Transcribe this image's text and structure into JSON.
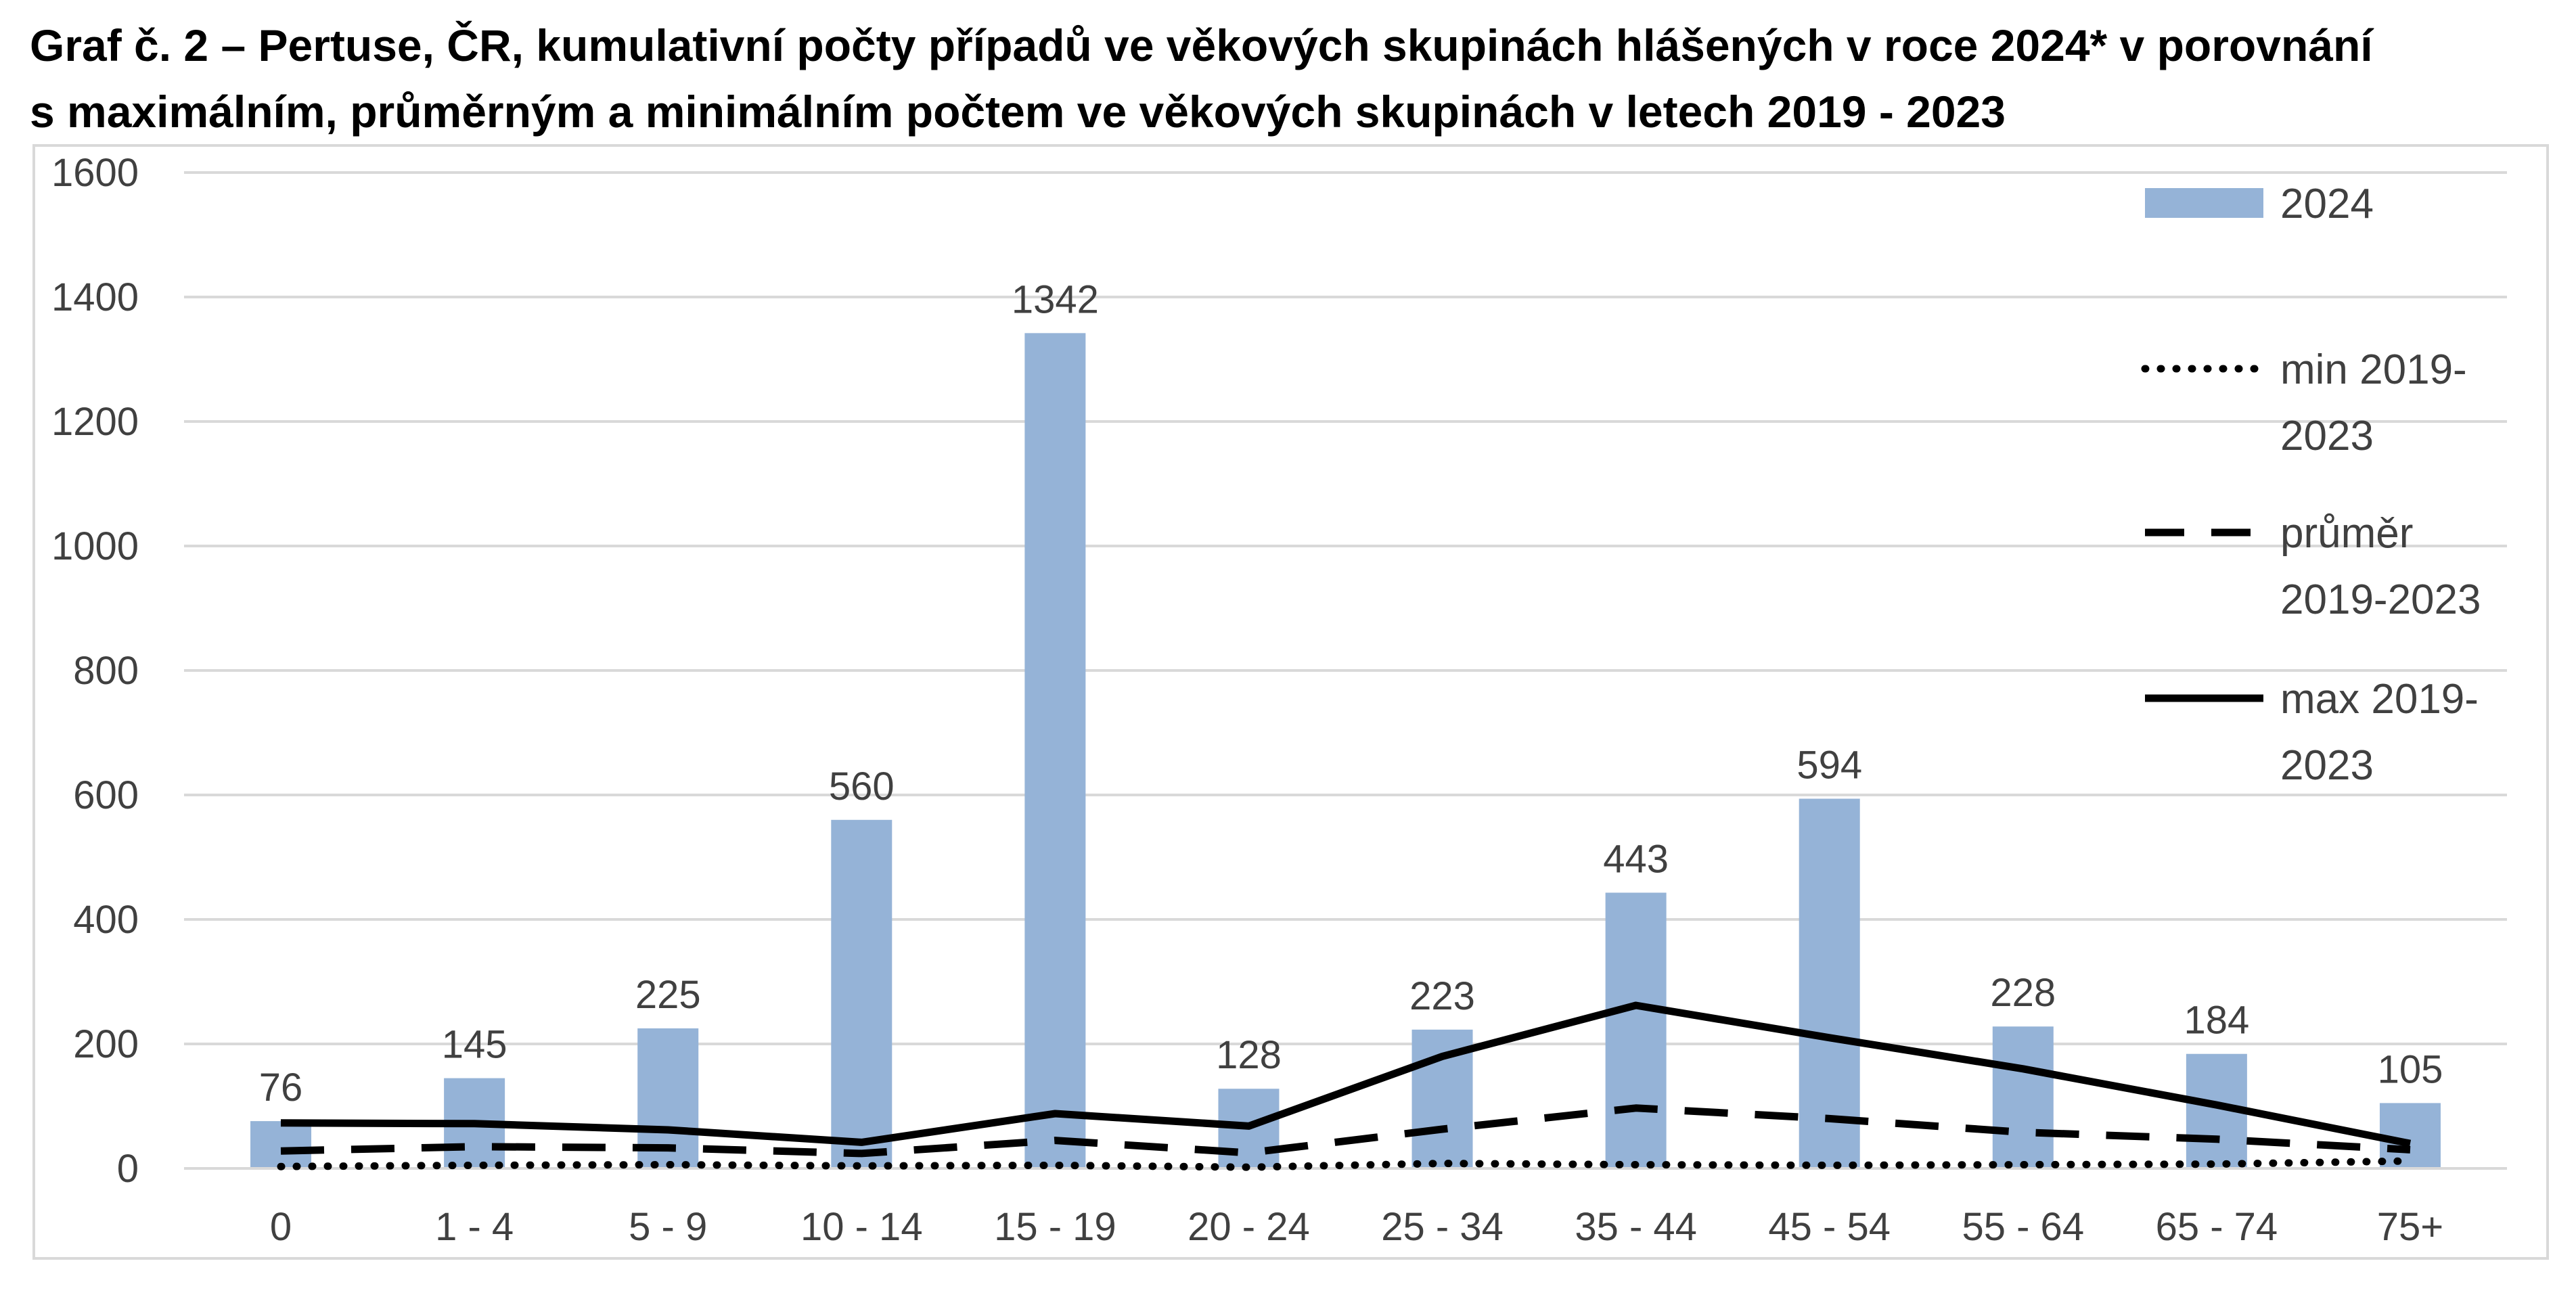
{
  "title": {
    "line1": "Graf č. 2 – Pertuse, ČR, kumulativní počty případů ve věkových skupinách hlášených v roce 2024* v porovnání",
    "line2": "s maximálním, průměrným a minimálním počtem ve věkových skupinách v  letech 2019 - 2023"
  },
  "colors": {
    "bar": "#95B3D7",
    "line": "#000000",
    "grid": "#D9D9D9",
    "text": "#404040"
  },
  "legend": {
    "placement": "right",
    "items": [
      {
        "key": "bar2024",
        "lines": [
          "2024"
        ]
      },
      {
        "key": "min",
        "lines": [
          "min 2019-",
          "2023"
        ]
      },
      {
        "key": "avg",
        "lines": [
          "průměr",
          "2019-2023"
        ]
      },
      {
        "key": "max",
        "lines": [
          "max 2019-",
          "2023"
        ]
      }
    ]
  },
  "chart_data": {
    "type": "bar",
    "categories": [
      "0",
      "1 - 4",
      "5 - 9",
      "10 - 14",
      "15 - 19",
      "20 - 24",
      "25 - 34",
      "35 - 44",
      "45 - 54",
      "55 - 64",
      "65 - 74",
      "75+"
    ],
    "ylim": [
      0,
      1600
    ],
    "yticks": [
      0,
      200,
      400,
      600,
      800,
      1000,
      1200,
      1400,
      1600
    ],
    "grid": true,
    "series": [
      {
        "key": "bar2024",
        "name": "2024",
        "type": "bar",
        "values": [
          76,
          145,
          225,
          560,
          1342,
          128,
          223,
          443,
          594,
          228,
          184,
          105
        ],
        "data_labels": true
      },
      {
        "key": "min",
        "name": "min 2019-2023",
        "type": "line",
        "style": "dotted",
        "values": [
          3,
          5,
          6,
          4,
          5,
          2,
          8,
          6,
          5,
          6,
          7,
          12
        ]
      },
      {
        "key": "avg",
        "name": "průměr 2019-2023",
        "type": "line",
        "style": "dashed",
        "values": [
          28,
          35,
          33,
          24,
          45,
          25,
          63,
          97,
          80,
          58,
          47,
          30
        ]
      },
      {
        "key": "max",
        "name": "max 2019-2023",
        "type": "line",
        "style": "solid",
        "values": [
          73,
          72,
          62,
          42,
          88,
          68,
          180,
          262,
          210,
          160,
          102,
          40
        ]
      }
    ]
  }
}
